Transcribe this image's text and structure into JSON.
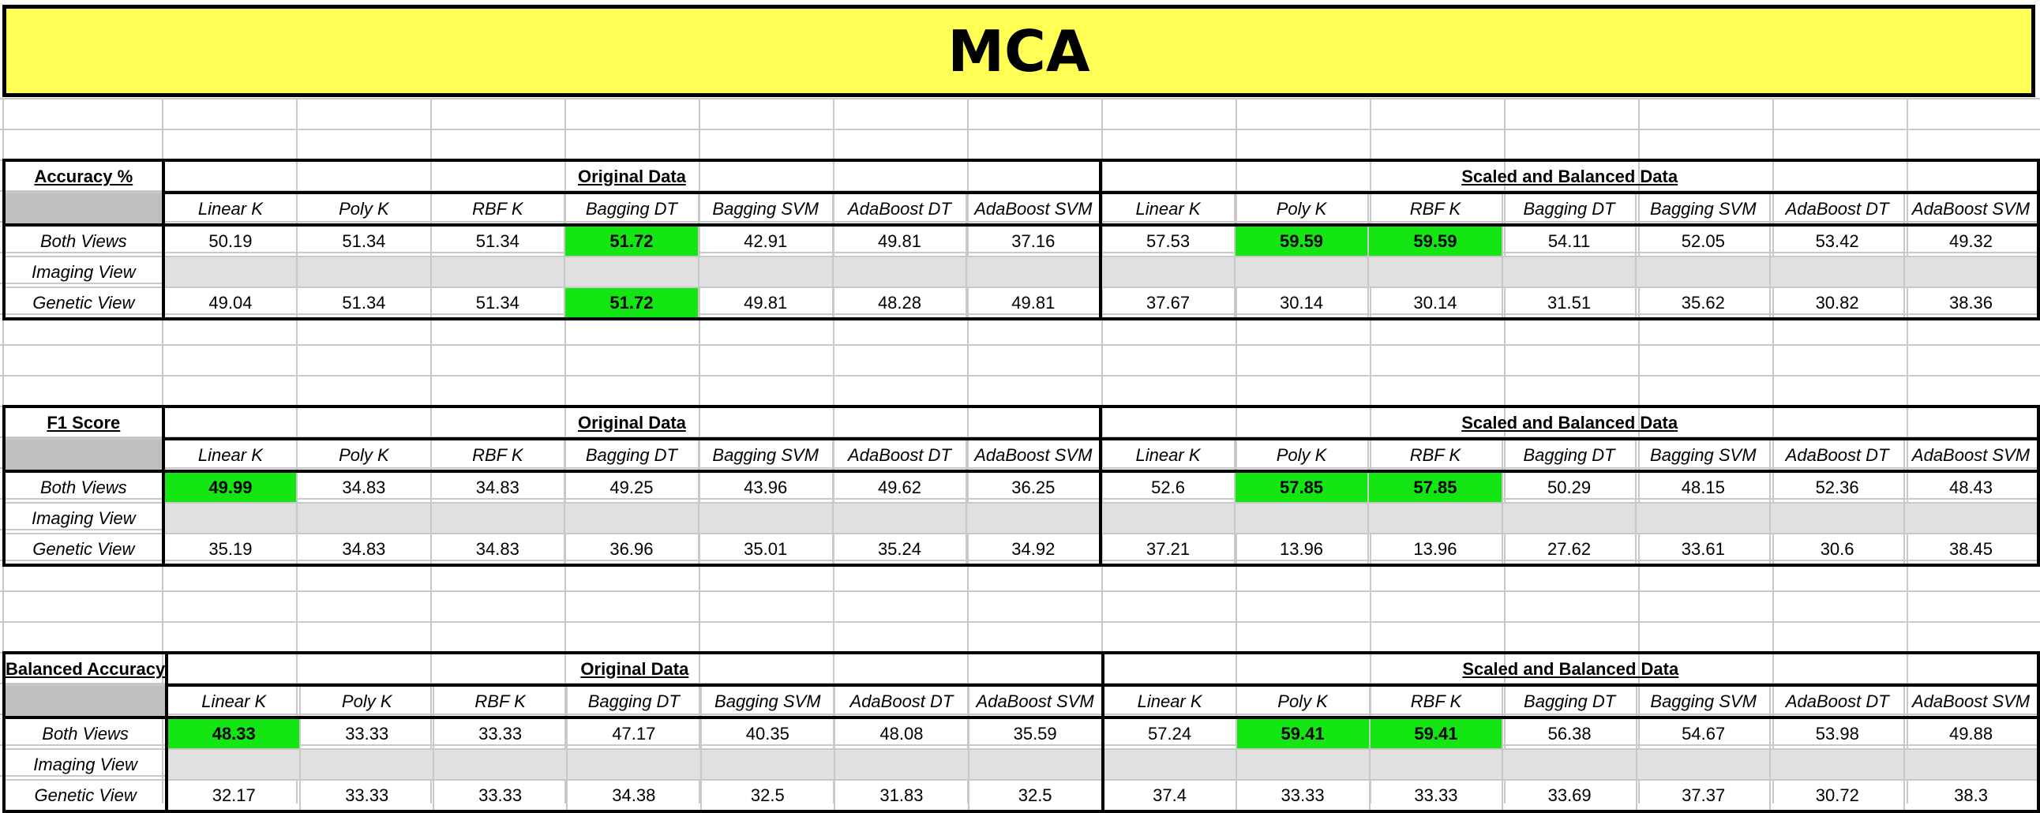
{
  "title": "MCA",
  "column_headers": [
    "Linear K",
    "Poly K",
    "RBF K",
    "Bagging DT",
    "Bagging SVM",
    "AdaBoost DT",
    "AdaBoost SVM"
  ],
  "group_labels": [
    "Original Data",
    "Scaled and Balanced Data"
  ],
  "row_labels": [
    "Both Views",
    "Imaging View",
    "Genetic View"
  ],
  "highlight_color": "#14e614",
  "title_color": "#ffff55",
  "tables": [
    {
      "title": "Accuracy %",
      "rows": [
        [
          "50.19",
          "51.34",
          "51.34",
          "51.72",
          "42.91",
          "49.81",
          "37.16",
          "57.53",
          "59.59",
          "59.59",
          "54.11",
          "52.05",
          "53.42",
          "49.32"
        ],
        [
          "",
          "",
          "",
          "",
          "",
          "",
          "",
          "",
          "",
          "",
          "",
          "",
          "",
          ""
        ],
        [
          "49.04",
          "51.34",
          "51.34",
          "51.72",
          "49.81",
          "48.28",
          "49.81",
          "37.67",
          "30.14",
          "30.14",
          "31.51",
          "35.62",
          "30.82",
          "38.36"
        ]
      ],
      "highlights": [
        [
          0,
          3
        ],
        [
          0,
          8
        ],
        [
          0,
          9
        ],
        [
          2,
          3
        ]
      ]
    },
    {
      "title": "F1 Score",
      "rows": [
        [
          "49.99",
          "34.83",
          "34.83",
          "49.25",
          "43.96",
          "49.62",
          "36.25",
          "52.6",
          "57.85",
          "57.85",
          "50.29",
          "48.15",
          "52.36",
          "48.43"
        ],
        [
          "",
          "",
          "",
          "",
          "",
          "",
          "",
          "",
          "",
          "",
          "",
          "",
          "",
          ""
        ],
        [
          "35.19",
          "34.83",
          "34.83",
          "36.96",
          "35.01",
          "35.24",
          "34.92",
          "37.21",
          "13.96",
          "13.96",
          "27.62",
          "33.61",
          "30.6",
          "38.45"
        ]
      ],
      "highlights": [
        [
          0,
          0
        ],
        [
          0,
          8
        ],
        [
          0,
          9
        ]
      ]
    },
    {
      "title": "Balanced Accuracy",
      "rows": [
        [
          "48.33",
          "33.33",
          "33.33",
          "47.17",
          "40.35",
          "48.08",
          "35.59",
          "57.24",
          "59.41",
          "59.41",
          "56.38",
          "54.67",
          "53.98",
          "49.88"
        ],
        [
          "",
          "",
          "",
          "",
          "",
          "",
          "",
          "",
          "",
          "",
          "",
          "",
          "",
          ""
        ],
        [
          "32.17",
          "33.33",
          "33.33",
          "34.38",
          "32.5",
          "31.83",
          "32.5",
          "37.4",
          "33.33",
          "33.33",
          "33.69",
          "37.37",
          "30.72",
          "38.3"
        ]
      ],
      "highlights": [
        [
          0,
          0
        ],
        [
          0,
          8
        ],
        [
          0,
          9
        ]
      ]
    }
  ]
}
